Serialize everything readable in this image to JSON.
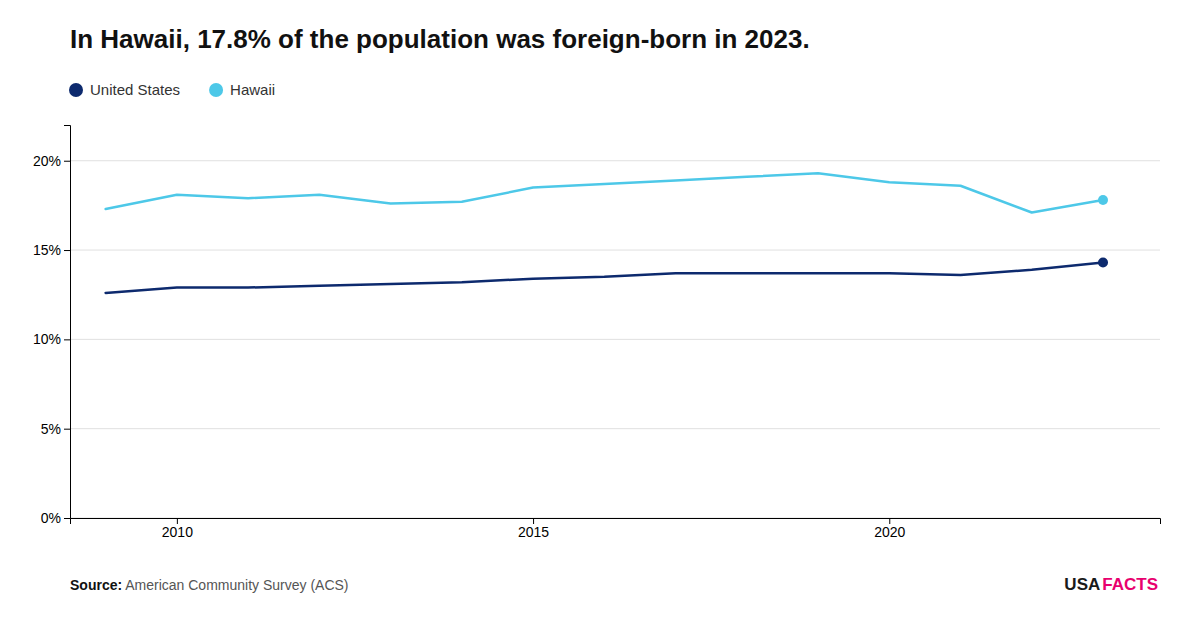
{
  "chart_data": {
    "type": "line",
    "title": "In Hawaii, 17.8% of the population was foreign-born in 2023.",
    "x": [
      2009,
      2010,
      2011,
      2012,
      2013,
      2014,
      2015,
      2016,
      2017,
      2018,
      2019,
      2020,
      2021,
      2022,
      2023
    ],
    "series": [
      {
        "name": "United States",
        "color": "#0D2A6E",
        "marker": "end",
        "values": [
          12.6,
          12.9,
          12.9,
          13.0,
          13.1,
          13.2,
          13.4,
          13.5,
          13.7,
          13.7,
          13.7,
          13.7,
          13.6,
          13.9,
          14.3
        ]
      },
      {
        "name": "Hawaii",
        "color": "#4DC8E8",
        "marker": "end",
        "values": [
          17.3,
          18.1,
          17.9,
          18.1,
          17.6,
          17.7,
          18.5,
          18.7,
          18.9,
          19.1,
          19.3,
          18.8,
          18.6,
          17.1,
          17.8
        ]
      }
    ],
    "xlim": [
      2008.5,
      2023.8
    ],
    "xticks": [
      2010,
      2015,
      2020
    ],
    "ylim": [
      0,
      22
    ],
    "yticks": [
      {
        "value": 0,
        "label": "0%"
      },
      {
        "value": 5,
        "label": "5%"
      },
      {
        "value": 10,
        "label": "10%"
      },
      {
        "value": 15,
        "label": "15%"
      },
      {
        "value": 20,
        "label": "20%"
      }
    ],
    "grid": true,
    "legend": "top-left",
    "annotations": [
      {
        "text": "Source:",
        "color": "#111111"
      },
      {
        "text": " American Community Survey (ACS)",
        "color": "#555555"
      },
      {
        "text": "USA",
        "color": "#1a1a1a"
      },
      {
        "text": "FACTS",
        "color": "#e8006e"
      }
    ]
  }
}
